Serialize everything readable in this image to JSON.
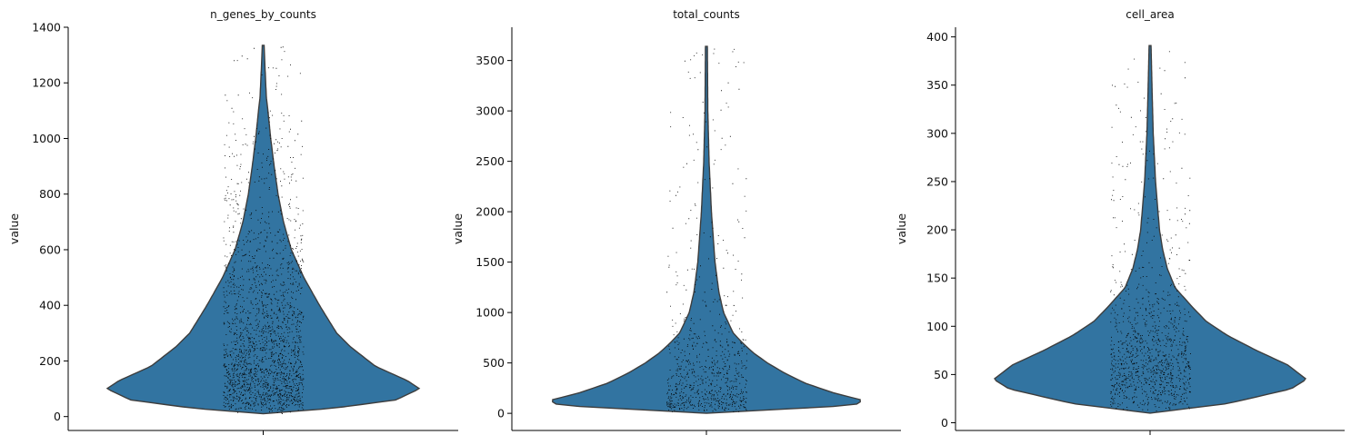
{
  "chart_data": [
    {
      "type": "violin",
      "title": "n_genes_by_counts",
      "xlabel": "",
      "ylabel": "value",
      "ylim": [
        -50,
        1400
      ],
      "yticks": [
        0,
        200,
        400,
        600,
        800,
        1000,
        1200,
        1400
      ],
      "x_categories": [
        ""
      ],
      "color": "#3274a1",
      "points_color": "#000000",
      "density": [
        [
          10,
          0.0
        ],
        [
          30,
          0.45
        ],
        [
          60,
          0.85
        ],
        [
          100,
          1.0
        ],
        [
          130,
          0.92
        ],
        [
          180,
          0.72
        ],
        [
          250,
          0.56
        ],
        [
          300,
          0.47
        ],
        [
          400,
          0.36
        ],
        [
          500,
          0.26
        ],
        [
          600,
          0.18
        ],
        [
          700,
          0.13
        ],
        [
          800,
          0.095
        ],
        [
          900,
          0.07
        ],
        [
          1000,
          0.048
        ],
        [
          1100,
          0.03
        ],
        [
          1150,
          0.02
        ],
        [
          1250,
          0.012
        ],
        [
          1335,
          0.006
        ]
      ],
      "point_range": [
        10,
        1335
      ],
      "point_count": 3200
    },
    {
      "type": "violin",
      "title": "total_counts",
      "xlabel": "",
      "ylabel": "value",
      "ylim": [
        -170,
        3830
      ],
      "yticks": [
        0,
        500,
        1000,
        1500,
        2000,
        2500,
        3000,
        3500
      ],
      "x_categories": [
        ""
      ],
      "color": "#3274a1",
      "points_color": "#000000",
      "density": [
        [
          0,
          0.0
        ],
        [
          80,
          0.95
        ],
        [
          130,
          1.0
        ],
        [
          200,
          0.82
        ],
        [
          300,
          0.63
        ],
        [
          400,
          0.5
        ],
        [
          500,
          0.39
        ],
        [
          600,
          0.3
        ],
        [
          700,
          0.23
        ],
        [
          800,
          0.17
        ],
        [
          1000,
          0.11
        ],
        [
          1200,
          0.08
        ],
        [
          1500,
          0.055
        ],
        [
          2000,
          0.032
        ],
        [
          2500,
          0.017
        ],
        [
          3000,
          0.009
        ],
        [
          3640,
          0.006
        ]
      ],
      "point_range": [
        0,
        3640
      ],
      "point_count": 3800
    },
    {
      "type": "violin",
      "title": "cell_area",
      "xlabel": "",
      "ylabel": "value",
      "ylim": [
        -8,
        410
      ],
      "yticks": [
        0,
        50,
        100,
        150,
        200,
        250,
        300,
        350,
        400
      ],
      "x_categories": [
        ""
      ],
      "color": "#3274a1",
      "points_color": "#000000",
      "density": [
        [
          10,
          0.0
        ],
        [
          20,
          0.5
        ],
        [
          35,
          0.9
        ],
        [
          45,
          1.0
        ],
        [
          60,
          0.88
        ],
        [
          75,
          0.68
        ],
        [
          90,
          0.5
        ],
        [
          105,
          0.36
        ],
        [
          120,
          0.27
        ],
        [
          140,
          0.16
        ],
        [
          160,
          0.11
        ],
        [
          180,
          0.08
        ],
        [
          200,
          0.06
        ],
        [
          250,
          0.035
        ],
        [
          300,
          0.02
        ],
        [
          350,
          0.012
        ],
        [
          391,
          0.006
        ]
      ],
      "point_range": [
        10,
        391
      ],
      "point_count": 3300
    }
  ]
}
